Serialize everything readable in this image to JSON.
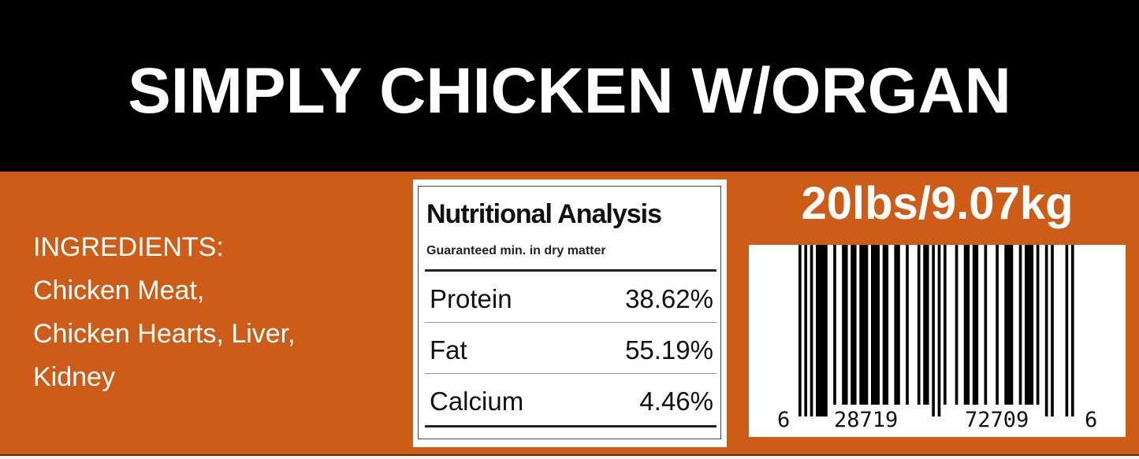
{
  "title": "SIMPLY CHICKEN W/ORGAN",
  "ingredients": {
    "heading": "INGREDIENTS:",
    "lines": [
      "Chicken Meat,",
      "Chicken Hearts, Liver,",
      "Kidney"
    ]
  },
  "nutrition": {
    "title": "Nutritional Analysis",
    "subtitle": "Guaranteed min. in dry matter",
    "rows": [
      {
        "name": "Protein",
        "value": "38.62%"
      },
      {
        "name": "Fat",
        "value": "55.19%"
      },
      {
        "name": "Calcium",
        "value": "4.46%"
      }
    ]
  },
  "weight": "20lbs/9.07kg",
  "barcode": {
    "digits": "628719727096",
    "left_digit": "6",
    "left_group": "28719",
    "right_group": "72709",
    "right_digit": "6"
  },
  "colors": {
    "header_bg": "#000000",
    "band_bg": "#cd5c18",
    "text": "#ffffff"
  }
}
